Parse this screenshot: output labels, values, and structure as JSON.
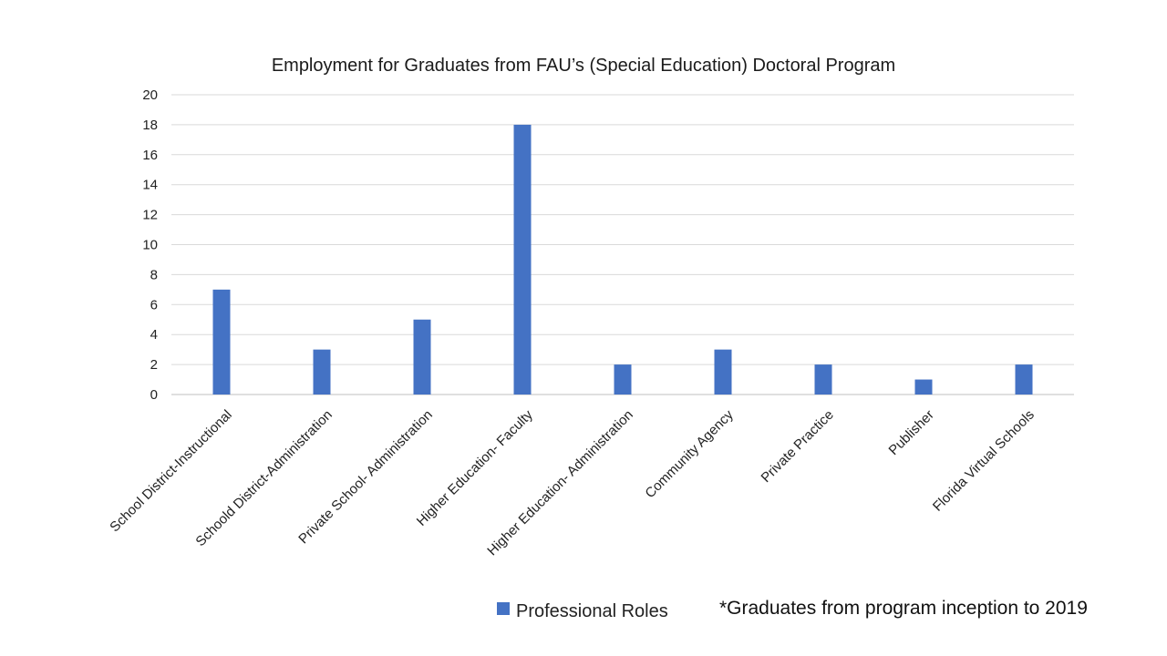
{
  "chart_data": {
    "type": "bar",
    "title": "Employment for Graduates from FAU’s (Special Education) Doctoral Program",
    "xlabel": "",
    "ylabel": "",
    "categories": [
      "School District-Instructional",
      "Schoold District-Administration",
      "Private School- Administration",
      "Higher Education- Faculty",
      "Higher Education- Administration",
      "Community Agency",
      "Private Practice",
      "Publisher",
      "Florida Virtual Schools"
    ],
    "series": [
      {
        "name": "Professional Roles",
        "values": [
          7,
          3,
          5,
          18,
          2,
          3,
          2,
          1,
          2
        ],
        "color": "#4472C4"
      }
    ],
    "ylim": [
      0,
      20
    ],
    "yticks": [
      0,
      2,
      4,
      6,
      8,
      10,
      12,
      14,
      16,
      18,
      20
    ],
    "grid": true,
    "legend": "bottom"
  },
  "note": "*Graduates from program inception to 2019"
}
